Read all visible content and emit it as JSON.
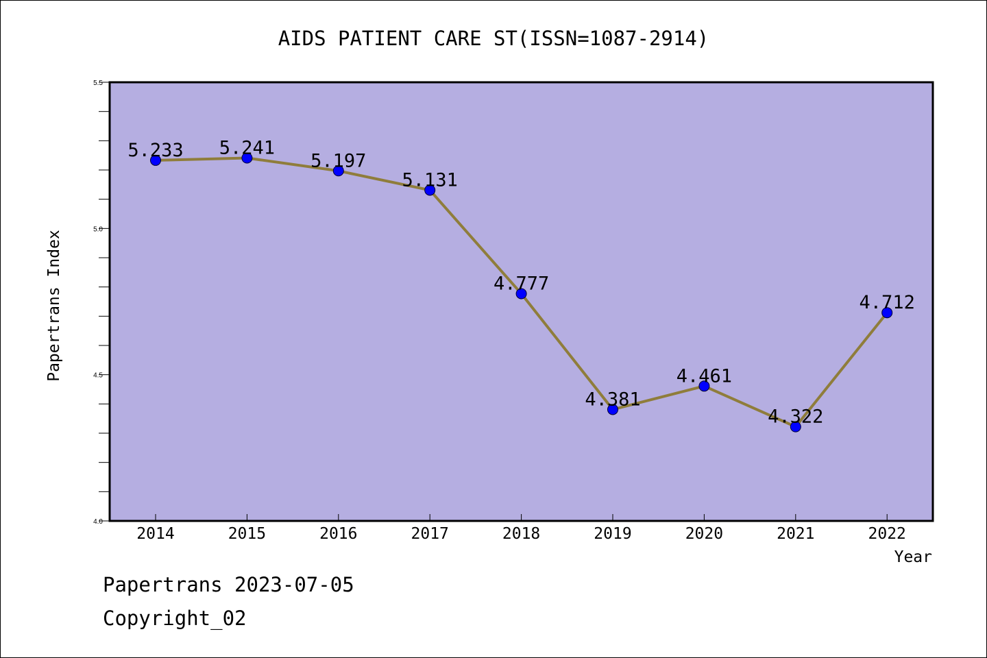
{
  "chart_data": {
    "type": "line",
    "title": "AIDS PATIENT CARE ST(ISSN=1087-2914)",
    "xlabel": "Year",
    "ylabel": "Papertrans Index",
    "categories": [
      "2014",
      "2015",
      "2016",
      "2017",
      "2018",
      "2019",
      "2020",
      "2021",
      "2022"
    ],
    "series": [
      {
        "values": [
          5.233,
          5.241,
          5.197,
          5.131,
          4.777,
          4.381,
          4.461,
          4.322,
          4.712
        ]
      }
    ],
    "data_labels": [
      "5.233",
      "5.241",
      "5.197",
      "5.131",
      "4.777",
      "4.381",
      "4.461",
      "4.322",
      "4.712"
    ],
    "ylim": [
      4.0,
      5.5
    ],
    "yticks": [
      "4.0",
      "4.5",
      "5.0",
      "5.5"
    ],
    "grid": false,
    "colors": {
      "plot_background": "#b5aee1",
      "line": "#8f7d3b",
      "marker": "#0000ff"
    }
  },
  "footer": {
    "source": "Papertrans 2023-07-05",
    "copyright": "Copyright_02"
  }
}
